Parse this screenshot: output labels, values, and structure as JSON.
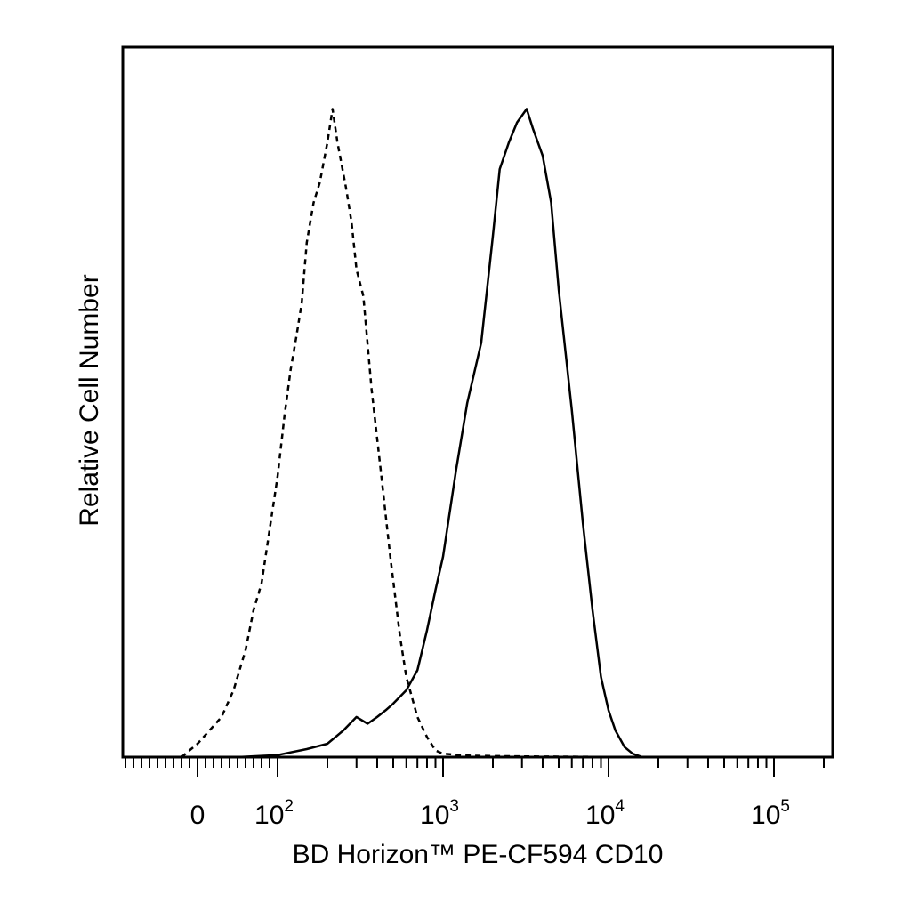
{
  "chart_data": {
    "type": "line",
    "title": "",
    "xlabel": "BD Horizon™ PE-CF594 CD10",
    "ylabel": "Relative Cell Number",
    "x_scale": "biexponential",
    "xlim": [
      -100,
      250000
    ],
    "ylim": [
      0,
      1
    ],
    "grid": false,
    "legend": "none",
    "x_tick_labels": [
      {
        "value": 0,
        "base": "0",
        "exp": ""
      },
      {
        "value": 100,
        "base": "10",
        "exp": "2"
      },
      {
        "value": 1000,
        "base": "10",
        "exp": "3"
      },
      {
        "value": 10000,
        "base": "10",
        "exp": "4"
      },
      {
        "value": 100000,
        "base": "10",
        "exp": "5"
      }
    ],
    "series": [
      {
        "style": "dashed",
        "color": "#000000",
        "points": [
          [
            -20,
            0.0
          ],
          [
            0,
            0.02
          ],
          [
            15,
            0.04
          ],
          [
            30,
            0.06
          ],
          [
            45,
            0.1
          ],
          [
            60,
            0.16
          ],
          [
            70,
            0.22
          ],
          [
            80,
            0.26
          ],
          [
            90,
            0.34
          ],
          [
            100,
            0.42
          ],
          [
            110,
            0.51
          ],
          [
            120,
            0.58
          ],
          [
            130,
            0.63
          ],
          [
            140,
            0.68
          ],
          [
            150,
            0.77
          ],
          [
            165,
            0.83
          ],
          [
            180,
            0.86
          ],
          [
            200,
            0.92
          ],
          [
            215,
            0.97
          ],
          [
            230,
            0.92
          ],
          [
            260,
            0.85
          ],
          [
            280,
            0.8
          ],
          [
            300,
            0.73
          ],
          [
            330,
            0.69
          ],
          [
            370,
            0.55
          ],
          [
            420,
            0.43
          ],
          [
            480,
            0.3
          ],
          [
            550,
            0.18
          ],
          [
            600,
            0.12
          ],
          [
            700,
            0.06
          ],
          [
            800,
            0.03
          ],
          [
            900,
            0.01
          ],
          [
            1000,
            0.005
          ],
          [
            1500,
            0.002
          ],
          [
            3000,
            0.001
          ],
          [
            15000,
            0.0
          ]
        ]
      },
      {
        "style": "solid",
        "color": "#000000",
        "points": [
          [
            -20,
            0.0
          ],
          [
            50,
            0.0
          ],
          [
            100,
            0.003
          ],
          [
            150,
            0.012
          ],
          [
            200,
            0.02
          ],
          [
            250,
            0.04
          ],
          [
            300,
            0.06
          ],
          [
            350,
            0.05
          ],
          [
            400,
            0.06
          ],
          [
            450,
            0.07
          ],
          [
            500,
            0.08
          ],
          [
            600,
            0.1
          ],
          [
            700,
            0.13
          ],
          [
            800,
            0.19
          ],
          [
            900,
            0.25
          ],
          [
            1000,
            0.3
          ],
          [
            1200,
            0.43
          ],
          [
            1400,
            0.53
          ],
          [
            1700,
            0.62
          ],
          [
            2000,
            0.78
          ],
          [
            2200,
            0.88
          ],
          [
            2500,
            0.92
          ],
          [
            2800,
            0.95
          ],
          [
            3200,
            0.97
          ],
          [
            3500,
            0.94
          ],
          [
            4000,
            0.9
          ],
          [
            4500,
            0.83
          ],
          [
            5000,
            0.7
          ],
          [
            6000,
            0.52
          ],
          [
            7000,
            0.35
          ],
          [
            8000,
            0.22
          ],
          [
            9000,
            0.12
          ],
          [
            10000,
            0.07
          ],
          [
            11000,
            0.04
          ],
          [
            12500,
            0.015
          ],
          [
            14000,
            0.005
          ],
          [
            16000,
            0.0
          ],
          [
            250000,
            0.0
          ]
        ]
      }
    ]
  }
}
